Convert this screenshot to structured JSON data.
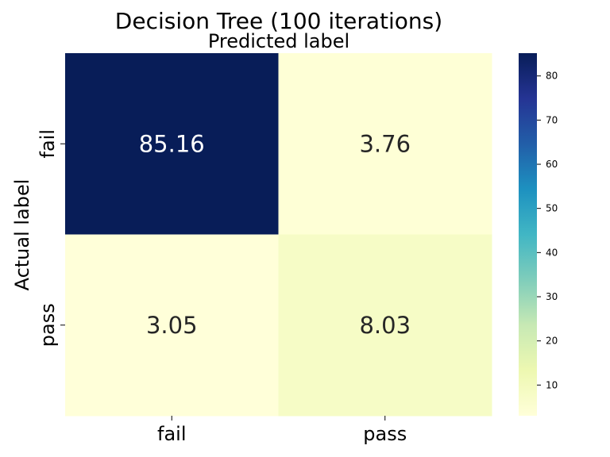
{
  "chart_data": {
    "type": "heatmap",
    "title": "Decision Tree (100 iterations)",
    "xlabel": "Predicted label",
    "ylabel": "Actual label",
    "x_categories": [
      "fail",
      "pass"
    ],
    "y_categories": [
      "fail",
      "pass"
    ],
    "values": [
      [
        85.16,
        3.76
      ],
      [
        3.05,
        8.03
      ]
    ],
    "value_labels": [
      [
        "85.16",
        "3.76"
      ],
      [
        "3.05",
        "8.03"
      ]
    ],
    "colormap": "YlGnBu",
    "colorbar": {
      "ticks": [
        10,
        20,
        30,
        40,
        50,
        60,
        70,
        80
      ],
      "min": 3.05,
      "max": 85.16
    },
    "colors": {
      "ramp": [
        "#ffffd9",
        "#edf8b1",
        "#c7e9b4",
        "#7fcdbb",
        "#41b6c4",
        "#1d91c0",
        "#225ea8",
        "#253494",
        "#081d58"
      ]
    }
  }
}
